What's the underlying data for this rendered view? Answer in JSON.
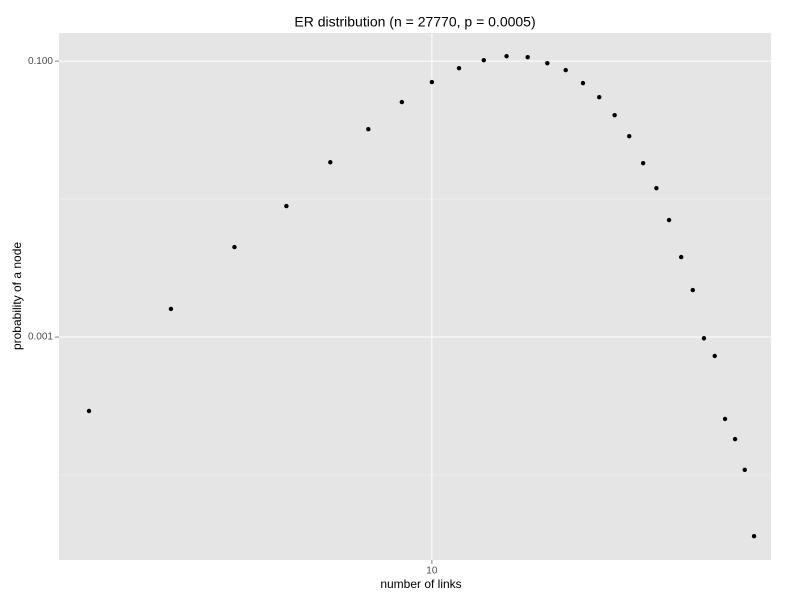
{
  "chart_data": {
    "type": "scatter",
    "title": "ER distribution (n = 27770, p = 0.0005)",
    "x_label": "number of links",
    "y_label": "probability of a node",
    "x": [
      3,
      4,
      5,
      6,
      7,
      8,
      9,
      10,
      11,
      12,
      13,
      14,
      15,
      16,
      17,
      18,
      19,
      20,
      21,
      22,
      23,
      24,
      25,
      26,
      27,
      28,
      29,
      30,
      31
    ],
    "values": [
      0.000291,
      0.0016,
      0.00449,
      0.0089,
      0.0185,
      0.0321,
      0.0505,
      0.0705,
      0.0889,
      0.1017,
      0.1087,
      0.1069,
      0.0967,
      0.0861,
      0.0693,
      0.0548,
      0.0406,
      0.0286,
      0.0182,
      0.012,
      0.00705,
      0.0038,
      0.00219,
      0.00098,
      0.00073,
      0.000255,
      0.000182,
      0.000109,
      3.6e-05
    ],
    "color": "#000000",
    "xlim": [
      2.7,
      32.9
    ],
    "ylim": [
      2.42e-05,
      0.16
    ],
    "xticks": [
      10
    ],
    "yticks": [
      0.001,
      {
        "value": 0.1,
        "label": "0.100"
      }
    ],
    "yminor": [
      0.0001,
      0.01
    ],
    "xlog": true,
    "ylog": true,
    "grid": true
  }
}
